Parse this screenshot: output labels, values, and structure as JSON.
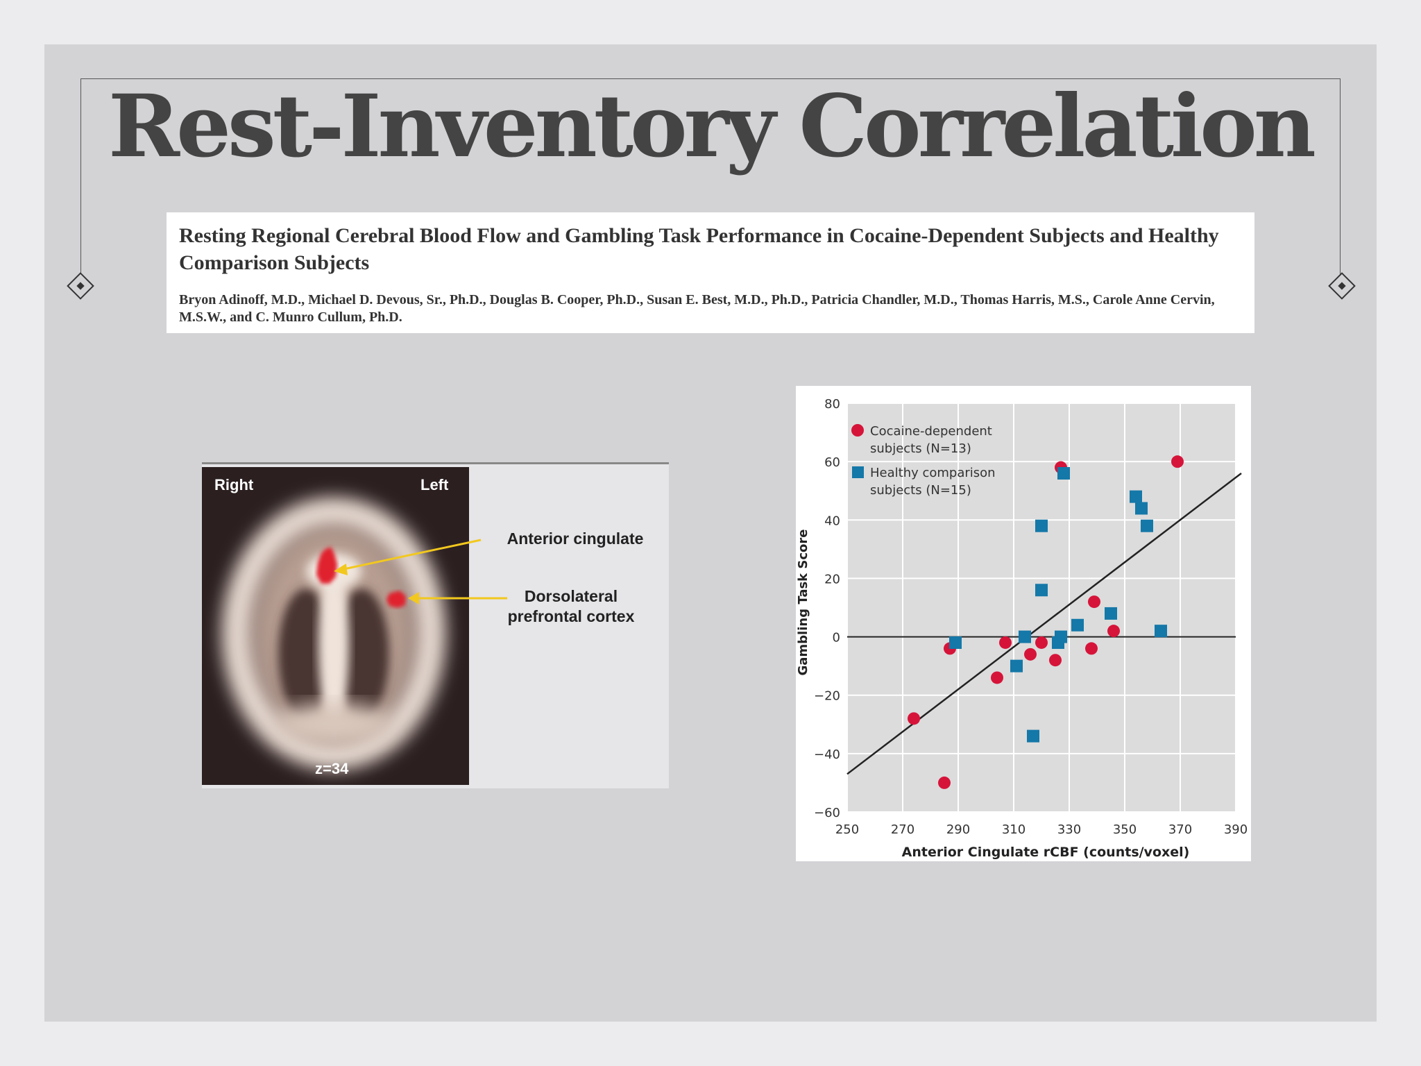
{
  "slide": {
    "title": "Rest-Inventory Correlation"
  },
  "paper": {
    "title": "Resting Regional Cerebral Blood Flow and Gambling Task Performance in Cocaine-Dependent Subjects and Healthy Comparison Subjects",
    "authors": "Bryon Adinoff, M.D., Michael D. Devous, Sr., Ph.D., Douglas B. Cooper, Ph.D., Susan E. Best, M.D., Ph.D., Patricia Chandler, M.D., Thomas Harris, M.S., Carole Anne Cervin, M.S.W., and C. Munro Cullum, Ph.D."
  },
  "brain_figure": {
    "right_label": "Right",
    "left_label": "Left",
    "slice_label": "z=34",
    "callout_1": "Anterior cingulate",
    "callout_2_line1": "Dorsolateral",
    "callout_2_line2": "prefrontal cortex",
    "region_color": "#e0202e",
    "arrow_color": "#f2c81e"
  },
  "chart_data": {
    "type": "scatter",
    "title": "",
    "xlabel": "Anterior Cingulate rCBF (counts/voxel)",
    "ylabel": "Gambling Task Score",
    "xlim": [
      250,
      390
    ],
    "ylim": [
      -60,
      80
    ],
    "x_ticks": [
      250,
      270,
      290,
      310,
      330,
      350,
      370,
      390
    ],
    "y_ticks": [
      80,
      60,
      40,
      20,
      0,
      -20,
      -40,
      -60
    ],
    "grid": true,
    "legend_position": "top-left",
    "reference_line_y": 0,
    "regression_line": {
      "x": [
        250,
        392
      ],
      "y": [
        -47,
        56
      ]
    },
    "series": [
      {
        "name": "Cocaine-dependent subjects (N=13)",
        "legend_line1": "Cocaine-dependent",
        "legend_line2": "subjects (N=13)",
        "marker": "circle",
        "color": "#d6143a",
        "points": [
          [
            274,
            -28
          ],
          [
            285,
            -50
          ],
          [
            287,
            -4
          ],
          [
            304,
            -14
          ],
          [
            307,
            -2
          ],
          [
            316,
            -6
          ],
          [
            320,
            -2
          ],
          [
            325,
            -8
          ],
          [
            327,
            58
          ],
          [
            338,
            -4
          ],
          [
            339,
            12
          ],
          [
            346,
            2
          ],
          [
            369,
            60
          ]
        ]
      },
      {
        "name": "Healthy comparison subjects (N=15)",
        "legend_line1": "Healthy comparison",
        "legend_line2": "subjects (N=15)",
        "marker": "square",
        "color": "#1478a8",
        "points": [
          [
            289,
            -2
          ],
          [
            311,
            -10
          ],
          [
            314,
            0
          ],
          [
            317,
            -34
          ],
          [
            320,
            16
          ],
          [
            320,
            38
          ],
          [
            326,
            -2
          ],
          [
            327,
            0
          ],
          [
            328,
            56
          ],
          [
            333,
            4
          ],
          [
            345,
            8
          ],
          [
            354,
            48
          ],
          [
            356,
            44
          ],
          [
            358,
            38
          ],
          [
            363,
            2
          ]
        ]
      }
    ]
  }
}
